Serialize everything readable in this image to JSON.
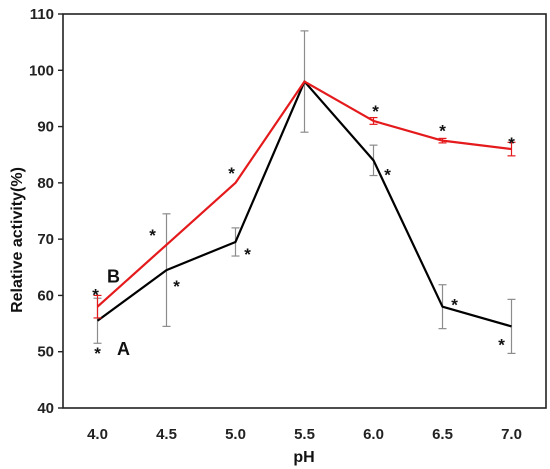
{
  "chart_data": {
    "type": "line",
    "xlabel": "pH",
    "ylabel": "Relative activity(%)",
    "categories": [
      "4.0",
      "4.5",
      "5.0",
      "5.5",
      "6.0",
      "6.5",
      "7.0"
    ],
    "ylim": [
      40,
      110
    ],
    "yticks": [
      "40",
      "50",
      "60",
      "70",
      "80",
      "90",
      "100",
      "110"
    ],
    "grid": false,
    "significance_marker": "*",
    "series": [
      {
        "name": "A",
        "color": "#000000",
        "values": [
          55.5,
          64.5,
          69.5,
          98.0,
          84.0,
          58.0,
          54.5
        ],
        "error": [
          4.0,
          10.0,
          2.5,
          9.0,
          2.7,
          3.9,
          4.8
        ],
        "error_color": "#8c8c8c"
      },
      {
        "name": "B",
        "color": "#e41a1c",
        "values": [
          58.0,
          69.0,
          80.0,
          98.0,
          91.0,
          87.5,
          86.0
        ],
        "error": [
          2.0,
          0.0,
          0.0,
          0.0,
          0.6,
          0.4,
          1.2
        ],
        "error_color": "#e41a1c"
      }
    ]
  }
}
